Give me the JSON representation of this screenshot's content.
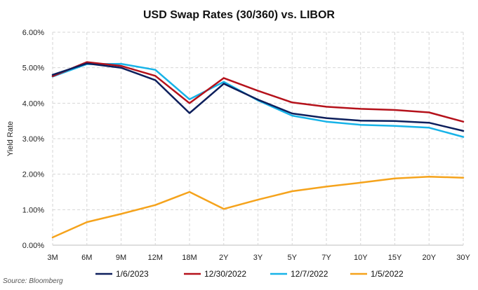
{
  "chart_data": {
    "type": "line",
    "title": "USD Swap Rates (30/360) vs. LIBOR",
    "ylabel": "Yield Rate",
    "xlabel": "",
    "categories": [
      "3M",
      "6M",
      "9M",
      "12M",
      "18M",
      "2Y",
      "3Y",
      "5Y",
      "7Y",
      "10Y",
      "15Y",
      "20Y",
      "30Y"
    ],
    "ylim": [
      0,
      6
    ],
    "yticks": [
      0,
      1,
      2,
      3,
      4,
      5,
      6
    ],
    "ytick_labels": [
      "0.00%",
      "1.00%",
      "2.00%",
      "3.00%",
      "4.00%",
      "5.00%",
      "6.00%"
    ],
    "grid": true,
    "legend_position": "bottom",
    "series": [
      {
        "name": "1/6/2023",
        "color": "#0d1f5c",
        "values": [
          4.8,
          5.12,
          5.0,
          4.65,
          3.72,
          4.55,
          4.1,
          3.71,
          3.58,
          3.51,
          3.5,
          3.45,
          3.22
        ]
      },
      {
        "name": "12/30/2022",
        "color": "#b5121b",
        "values": [
          4.76,
          5.16,
          5.05,
          4.77,
          4.0,
          4.71,
          4.35,
          4.02,
          3.9,
          3.84,
          3.81,
          3.74,
          3.48
        ]
      },
      {
        "name": "12/7/2022",
        "color": "#17b3e8",
        "values": [
          4.75,
          5.1,
          5.11,
          4.94,
          4.11,
          4.6,
          4.08,
          3.65,
          3.48,
          3.39,
          3.36,
          3.31,
          3.05
        ]
      },
      {
        "name": "1/5/2022",
        "color": "#f5a31c",
        "values": [
          0.22,
          0.65,
          0.88,
          1.13,
          1.5,
          1.02,
          1.28,
          1.52,
          1.65,
          1.76,
          1.88,
          1.93,
          1.9
        ]
      }
    ]
  },
  "source": "Source: Bloomberg"
}
